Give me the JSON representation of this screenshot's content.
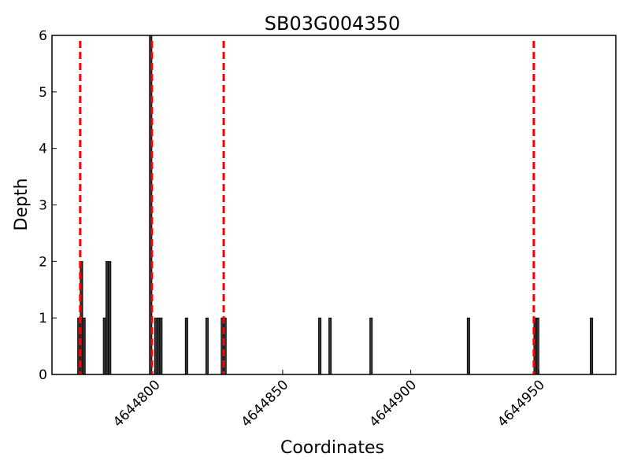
{
  "chart_data": {
    "type": "bar",
    "title": "SB03G004350",
    "xlabel": "Coordinates",
    "ylabel": "Depth",
    "xlim": [
      4644760,
      4644980
    ],
    "ylim": [
      0,
      6
    ],
    "grid": false,
    "legend": "none",
    "x_ticks": [
      4644800,
      4644850,
      4644900,
      4644950
    ],
    "x_tick_labels": [
      "4644800",
      "4644850",
      "4644900",
      "4644950"
    ],
    "y_ticks": [
      0,
      1,
      2,
      3,
      4,
      5,
      6
    ],
    "y_tick_labels": [
      "0",
      "1",
      "2",
      "3",
      "4",
      "5",
      "6"
    ],
    "bar_width": 1,
    "series": [
      {
        "x": [
          4644770,
          4644771,
          4644772,
          4644780,
          4644781,
          4644782,
          4644798,
          4644800,
          4644801,
          4644802,
          4644812,
          4644820,
          4644826,
          4644827,
          4644864,
          4644868,
          4644884,
          4644922,
          4644948,
          4644949,
          4644970
        ],
        "values": [
          1,
          2,
          1,
          1,
          2,
          2,
          6,
          1,
          1,
          1,
          1,
          1,
          1,
          1,
          1,
          1,
          1,
          1,
          1,
          1,
          1
        ]
      }
    ],
    "vlines": [
      4644771,
      4644799,
      4644827,
      4644948
    ],
    "colors": {
      "bar_fill": "#333333",
      "bar_edge": "#000000",
      "vline": "#ff0000",
      "axis": "#000000"
    }
  }
}
